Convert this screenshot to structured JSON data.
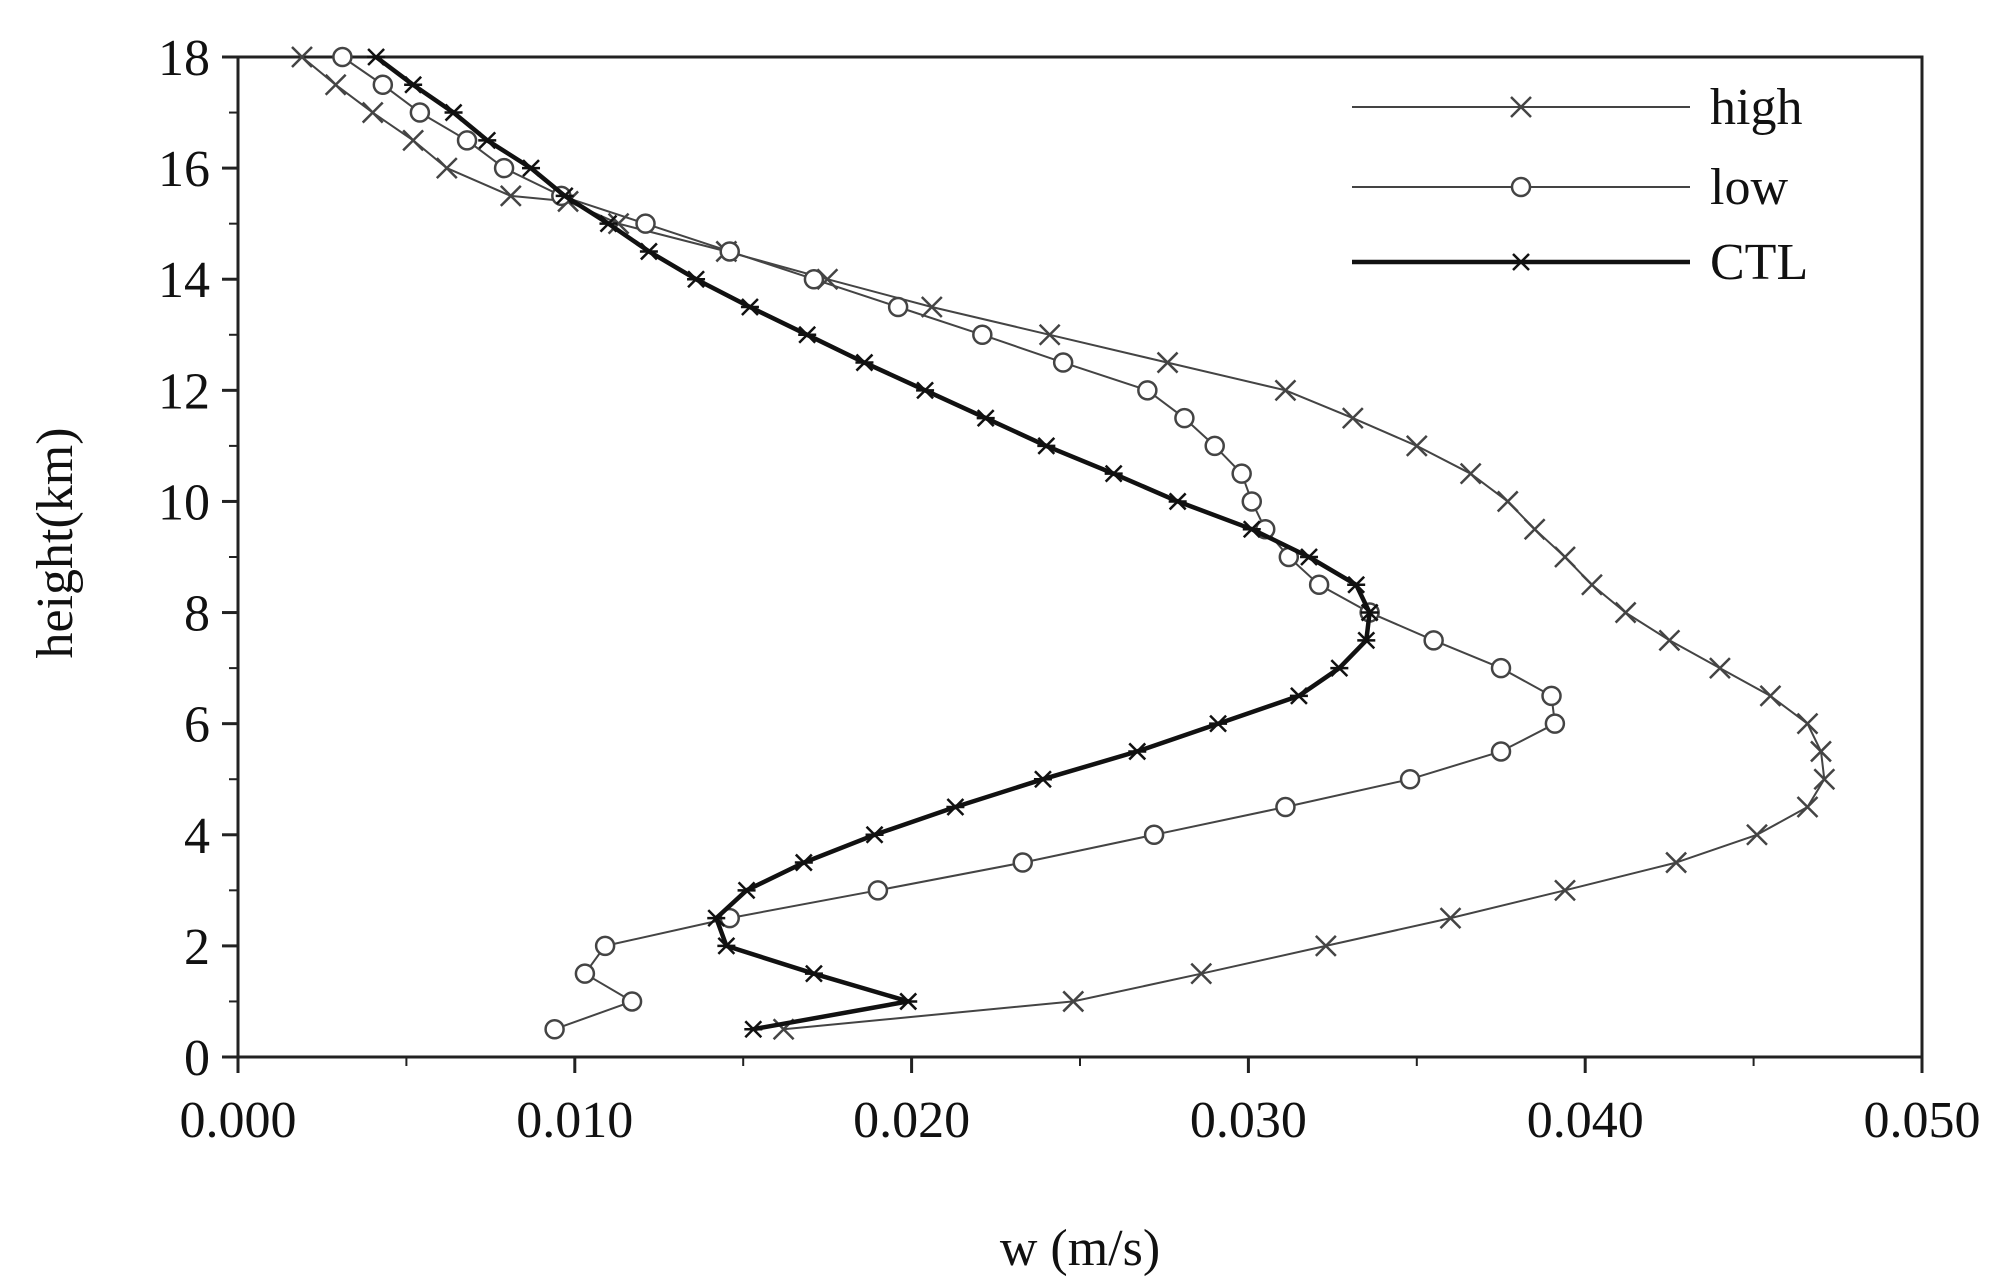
{
  "chart_data": {
    "type": "line",
    "xlabel": "w (m/s)",
    "ylabel": "height(km)",
    "xlim": [
      0.0,
      0.05
    ],
    "ylim": [
      0,
      18
    ],
    "x_ticks": [
      "0.000",
      "0.010",
      "0.020",
      "0.030",
      "0.040",
      "0.050"
    ],
    "y_ticks": [
      "0",
      "2",
      "4",
      "6",
      "8",
      "10",
      "12",
      "14",
      "16",
      "18"
    ],
    "grid": false,
    "legend_position": "top-right",
    "legend": [
      "high",
      "low",
      "CTL"
    ],
    "series": [
      {
        "name": "high",
        "marker": "x",
        "color": "#444444",
        "points": [
          [
            0.0162,
            0.5
          ],
          [
            0.0248,
            1.0
          ],
          [
            0.0286,
            1.5
          ],
          [
            0.0323,
            2.0
          ],
          [
            0.036,
            2.5
          ],
          [
            0.0394,
            3.0
          ],
          [
            0.0427,
            3.5
          ],
          [
            0.0451,
            4.0
          ],
          [
            0.0466,
            4.5
          ],
          [
            0.0471,
            5.0
          ],
          [
            0.047,
            5.5
          ],
          [
            0.0466,
            6.0
          ],
          [
            0.0455,
            6.5
          ],
          [
            0.044,
            7.0
          ],
          [
            0.0425,
            7.5
          ],
          [
            0.0412,
            8.0
          ],
          [
            0.0402,
            8.5
          ],
          [
            0.0394,
            9.0
          ],
          [
            0.0385,
            9.5
          ],
          [
            0.0377,
            10.0
          ],
          [
            0.0366,
            10.5
          ],
          [
            0.035,
            11.0
          ],
          [
            0.0331,
            11.5
          ],
          [
            0.0311,
            12.0
          ],
          [
            0.0276,
            12.5
          ],
          [
            0.0241,
            13.0
          ],
          [
            0.0206,
            13.5
          ],
          [
            0.0175,
            14.0
          ],
          [
            0.0145,
            14.5
          ],
          [
            0.0113,
            15.0
          ],
          [
            0.0098,
            15.4
          ],
          [
            0.0081,
            15.5
          ],
          [
            0.0062,
            16.0
          ],
          [
            0.0052,
            16.5
          ],
          [
            0.004,
            17.0
          ],
          [
            0.0029,
            17.5
          ],
          [
            0.0019,
            18.0
          ]
        ]
      },
      {
        "name": "low",
        "marker": "o",
        "color": "#444444",
        "points": [
          [
            0.0094,
            0.5
          ],
          [
            0.0117,
            1.0
          ],
          [
            0.0103,
            1.5
          ],
          [
            0.0109,
            2.0
          ],
          [
            0.0146,
            2.5
          ],
          [
            0.019,
            3.0
          ],
          [
            0.0233,
            3.5
          ],
          [
            0.0272,
            4.0
          ],
          [
            0.0311,
            4.5
          ],
          [
            0.0348,
            5.0
          ],
          [
            0.0375,
            5.5
          ],
          [
            0.0391,
            6.0
          ],
          [
            0.039,
            6.5
          ],
          [
            0.0375,
            7.0
          ],
          [
            0.0355,
            7.5
          ],
          [
            0.0336,
            8.0
          ],
          [
            0.0321,
            8.5
          ],
          [
            0.0312,
            9.0
          ],
          [
            0.0305,
            9.5
          ],
          [
            0.0301,
            10.0
          ],
          [
            0.0298,
            10.5
          ],
          [
            0.029,
            11.0
          ],
          [
            0.0281,
            11.5
          ],
          [
            0.027,
            12.0
          ],
          [
            0.0245,
            12.5
          ],
          [
            0.0221,
            13.0
          ],
          [
            0.0196,
            13.5
          ],
          [
            0.0171,
            14.0
          ],
          [
            0.0146,
            14.5
          ],
          [
            0.0121,
            15.0
          ],
          [
            0.0096,
            15.5
          ],
          [
            0.0079,
            16.0
          ],
          [
            0.0068,
            16.5
          ],
          [
            0.0054,
            17.0
          ],
          [
            0.0043,
            17.5
          ],
          [
            0.0031,
            18.0
          ]
        ]
      },
      {
        "name": "CTL",
        "marker": "star",
        "color": "#111111",
        "points": [
          [
            0.0153,
            0.5
          ],
          [
            0.0199,
            1.0
          ],
          [
            0.0171,
            1.5
          ],
          [
            0.0145,
            2.0
          ],
          [
            0.0142,
            2.5
          ],
          [
            0.0151,
            3.0
          ],
          [
            0.0168,
            3.5
          ],
          [
            0.0189,
            4.0
          ],
          [
            0.0213,
            4.5
          ],
          [
            0.0239,
            5.0
          ],
          [
            0.0267,
            5.5
          ],
          [
            0.0291,
            6.0
          ],
          [
            0.0315,
            6.5
          ],
          [
            0.0327,
            7.0
          ],
          [
            0.0335,
            7.5
          ],
          [
            0.0336,
            8.0
          ],
          [
            0.0332,
            8.5
          ],
          [
            0.0318,
            9.0
          ],
          [
            0.0301,
            9.5
          ],
          [
            0.0279,
            10.0
          ],
          [
            0.026,
            10.5
          ],
          [
            0.024,
            11.0
          ],
          [
            0.0222,
            11.5
          ],
          [
            0.0204,
            12.0
          ],
          [
            0.0186,
            12.5
          ],
          [
            0.0169,
            13.0
          ],
          [
            0.0152,
            13.5
          ],
          [
            0.0136,
            14.0
          ],
          [
            0.0122,
            14.5
          ],
          [
            0.011,
            15.0
          ],
          [
            0.0097,
            15.5
          ],
          [
            0.0087,
            16.0
          ],
          [
            0.0074,
            16.5
          ],
          [
            0.0064,
            17.0
          ],
          [
            0.0052,
            17.5
          ],
          [
            0.0041,
            18.0
          ]
        ]
      }
    ]
  }
}
